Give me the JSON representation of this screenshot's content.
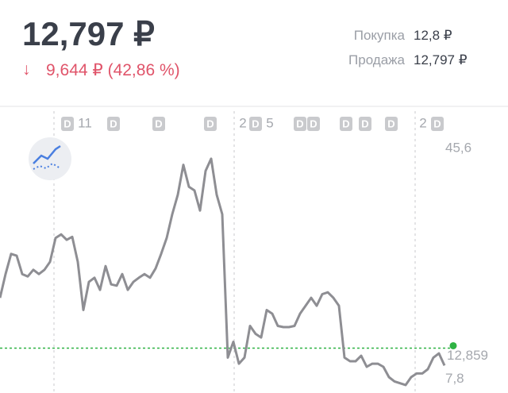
{
  "header": {
    "price": "12,797 ₽",
    "change": "9,644 ₽ (42,86 %)",
    "buy_label": "Покупка",
    "buy_value": "12,8 ₽",
    "sell_label": "Продажа",
    "sell_value": "12,797 ₽"
  },
  "chart_data": {
    "type": "line",
    "color": "#8e8e93",
    "ylim": [
      5.5,
      53
    ],
    "yticks": [
      {
        "value": 45.6,
        "label": "45,6"
      },
      {
        "value": 7.8,
        "label": "7,8"
      }
    ],
    "current": {
      "value": 12.859,
      "label": "12,859"
    },
    "current_color": "#2fb344",
    "x_labels": [
      "11",
      "2",
      "5",
      "2"
    ],
    "events": [
      "D",
      "D",
      "D",
      "D",
      "D",
      "D",
      "D",
      "D",
      "D",
      "D",
      "D"
    ],
    "values": [
      21.1,
      25.0,
      28.3,
      28.0,
      25.0,
      24.6,
      25.7,
      25.0,
      25.7,
      27.0,
      30.9,
      31.5,
      30.6,
      31.1,
      27.0,
      19.1,
      23.7,
      24.4,
      22.4,
      26.3,
      23.3,
      23.1,
      25.0,
      22.4,
      23.7,
      24.4,
      25.0,
      24.4,
      25.9,
      28.3,
      30.9,
      34.8,
      38.0,
      42.9,
      39.3,
      38.7,
      35.4,
      41.9,
      43.9,
      38.0,
      34.8,
      11.3,
      13.9,
      10.3,
      11.3,
      16.5,
      15.2,
      14.6,
      19.1,
      18.5,
      16.5,
      16.3,
      16.3,
      16.5,
      18.5,
      19.8,
      21.1,
      19.8,
      21.7,
      22.0,
      21.1,
      19.8,
      11.3,
      10.7,
      10.7,
      11.6,
      9.8,
      10.3,
      10.3,
      9.8,
      8.1,
      7.4,
      7.1,
      6.8,
      8.1,
      8.7,
      8.7,
      9.4,
      11.3,
      12.0,
      10.0
    ]
  }
}
